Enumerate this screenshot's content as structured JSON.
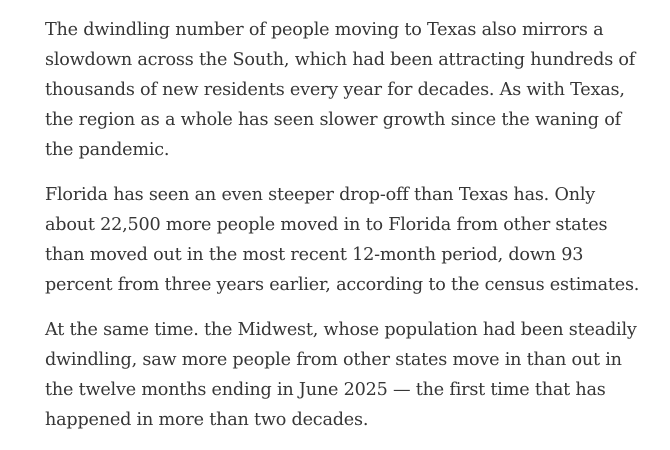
{
  "article": {
    "paragraphs": [
      {
        "lines": [
          "The dwindling number of people moving to Texas also mirrors a",
          "slowdown across the South, which had been attracting hundreds of",
          "thousands of new residents every year for decades. As with Texas,",
          "the region as a whole has seen slower growth since the waning of",
          "the pandemic."
        ]
      },
      {
        "lines": [
          "Florida has seen an even steeper drop-off than Texas has. Only",
          "about 22,500 more people moved in to Florida from other states",
          "than moved out in the most recent 12-month period, down 93",
          "percent from three years earlier, according to the census estimates."
        ]
      },
      {
        "lines": [
          "At the same time. the Midwest, whose population had been steadily",
          "dwindling, saw more people from other states move in than out in",
          "the twelve months ending in June 2025 — the first time that has",
          "happened in more than two decades."
        ]
      }
    ]
  }
}
